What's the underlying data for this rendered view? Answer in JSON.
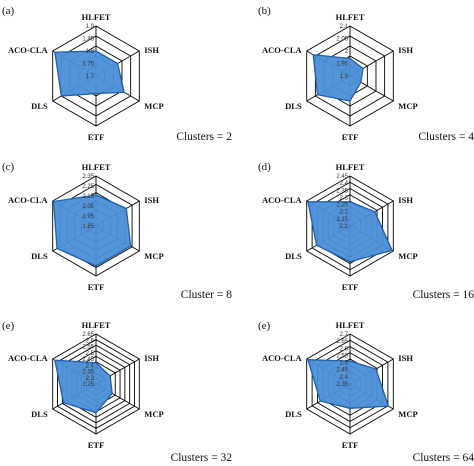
{
  "chart_data": [
    {
      "type": "radar",
      "panel": "(a)",
      "caption": "Clusters = 2",
      "axes": [
        "HLFET",
        "ISH",
        "MCP",
        "ETF",
        "DLS",
        "ACO-CLA"
      ],
      "ticks": [
        "1.7",
        "1.75",
        "1.8",
        "1.85",
        "1.9"
      ],
      "rlim": [
        1.7,
        1.9
      ],
      "values": [
        1.8,
        1.8,
        1.83,
        1.77,
        1.86,
        1.89
      ]
    },
    {
      "type": "radar",
      "panel": "(b)",
      "caption": "Clusters = 4",
      "axes": [
        "HLFET",
        "ISH",
        "MCP",
        "ETF",
        "DLS",
        "ACO-CLA"
      ],
      "ticks": [
        "1.9",
        "1.95",
        "2",
        "2.05",
        "2.1"
      ],
      "rlim": [
        1.9,
        2.1
      ],
      "values": [
        1.97,
        1.96,
        1.95,
        2.0,
        2.05,
        2.07
      ]
    },
    {
      "type": "radar",
      "panel": "(c)",
      "caption": "Cluster = 8",
      "axes": [
        "HLFET",
        "ISH",
        "MCP",
        "ETF",
        "DLS",
        "ACO-CLA"
      ],
      "ticks": [
        "1.85",
        "1.95",
        "2.05",
        "2.15",
        "2.25",
        "2.35"
      ],
      "rlim": [
        1.85,
        2.35
      ],
      "values": [
        2.16,
        2.2,
        2.25,
        2.25,
        2.3,
        2.34
      ]
    },
    {
      "type": "radar",
      "panel": "(d)",
      "caption": "Clusters = 16",
      "axes": [
        "HLFET",
        "ISH",
        "MCP",
        "ETF",
        "DLS",
        "ACO-CLA"
      ],
      "ticks": [
        "2.1",
        "2.15",
        "2.2",
        "2.25",
        "2.3",
        "2.35",
        "2.4",
        "2.45"
      ],
      "rlim": [
        2.1,
        2.45
      ],
      "values": [
        2.27,
        2.3,
        2.44,
        2.35,
        2.37,
        2.44
      ]
    },
    {
      "type": "radar",
      "panel": "(e)",
      "caption": "Clusters = 32",
      "axes": [
        "HLFET",
        "ISH",
        "MCP",
        "ETF",
        "DLS",
        "ACO-CLA"
      ],
      "ticks": [
        "2.25",
        "2.3",
        "2.35",
        "2.4",
        "2.45",
        "2.5",
        "2.55",
        "2.6",
        "2.65"
      ],
      "rlim": [
        2.25,
        2.65
      ],
      "values": [
        2.42,
        2.38,
        2.4,
        2.48,
        2.55,
        2.63
      ]
    },
    {
      "type": "radar",
      "panel": "(e)",
      "caption": "Clusters = 64",
      "axes": [
        "HLFET",
        "ISH",
        "MCP",
        "ETF",
        "DLS",
        "ACO-CLA"
      ],
      "ticks": [
        "2.35",
        "2.4",
        "2.45",
        "2.5",
        "2.55",
        "2.6",
        "2.65",
        "2.7"
      ],
      "rlim": [
        2.35,
        2.7
      ],
      "values": [
        2.51,
        2.56,
        2.66,
        2.52,
        2.59,
        2.69
      ]
    }
  ],
  "colors": {
    "fill": "#4a8fd6",
    "stroke": "#1f5fae",
    "grid": "#000000"
  }
}
